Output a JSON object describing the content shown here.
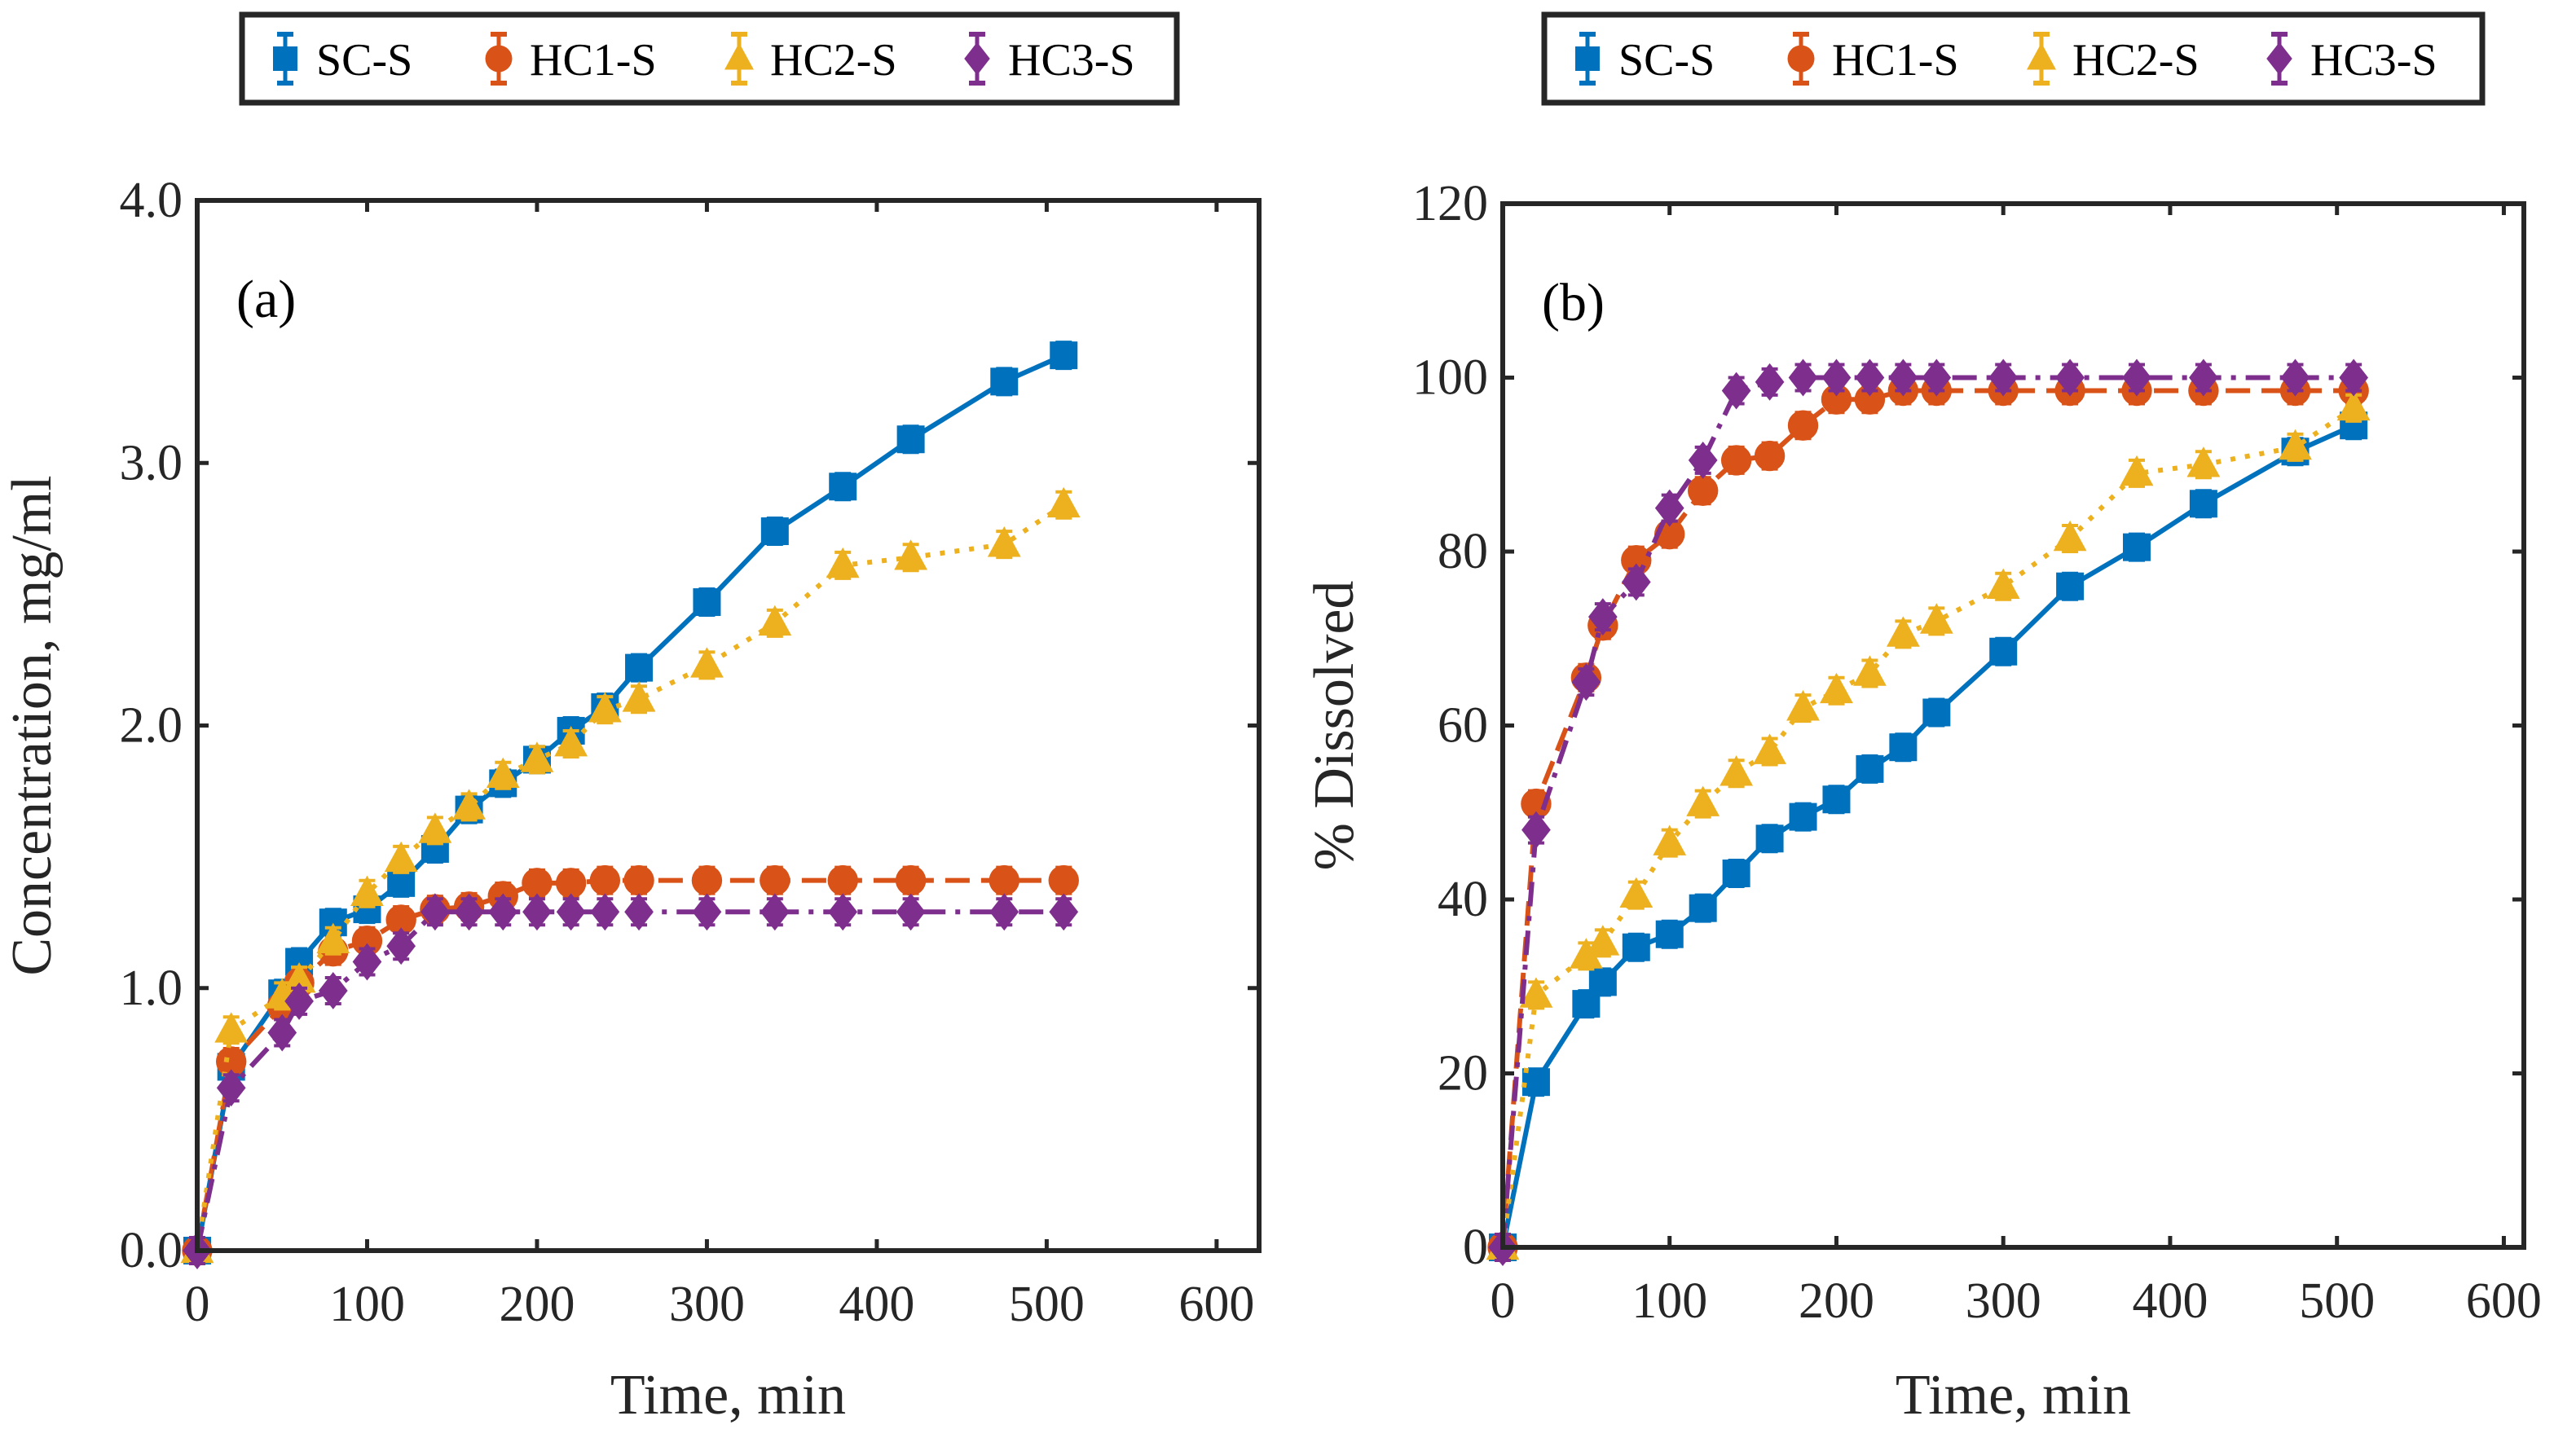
{
  "colors": {
    "SC-S": "#0072BD",
    "HC1-S": "#D95319",
    "HC2-S": "#EDB120",
    "HC3-S": "#7E2F8E",
    "axis": "#262626"
  },
  "chart_data": [
    {
      "type": "line",
      "panel_label": "(a)",
      "xlabel": "Time, min",
      "ylabel": "Concentration, mg/ml",
      "xlim": [
        0,
        625
      ],
      "ylim": [
        0,
        4.0
      ],
      "xticks": [
        "0",
        "100",
        "200",
        "300",
        "400",
        "500",
        "600"
      ],
      "xtick_values": [
        0,
        100,
        200,
        300,
        400,
        500,
        600
      ],
      "yticks": [
        "0.0",
        "1.0",
        "2.0",
        "3.0",
        "4.0"
      ],
      "ytick_values": [
        0,
        1,
        2,
        3,
        4
      ],
      "legend": {
        "placement": "top, outside",
        "entries": [
          "SC-S",
          "HC1-S",
          "HC2-S",
          "HC3-S"
        ]
      },
      "x": [
        0,
        20,
        50,
        60,
        80,
        100,
        120,
        140,
        160,
        180,
        200,
        220,
        240,
        260,
        300,
        340,
        380,
        420,
        475,
        510
      ],
      "series": [
        {
          "name": "SC-S",
          "marker": "square",
          "line": "solid",
          "values": [
            0,
            0.7,
            0.98,
            1.1,
            1.25,
            1.3,
            1.4,
            1.53,
            1.68,
            1.78,
            1.87,
            1.98,
            2.07,
            2.22,
            2.47,
            2.74,
            2.91,
            3.09,
            3.31,
            3.41
          ]
        },
        {
          "name": "HC1-S",
          "marker": "circle",
          "line": "dashed",
          "values": [
            0,
            0.72,
            0.93,
            1.02,
            1.14,
            1.18,
            1.26,
            1.3,
            1.31,
            1.35,
            1.4,
            1.4,
            1.41,
            1.41,
            1.41,
            1.41,
            1.41,
            1.41,
            1.41,
            1.41
          ]
        },
        {
          "name": "HC2-S",
          "marker": "triangle",
          "line": "dotted",
          "values": [
            0,
            0.84,
            0.97,
            1.03,
            1.18,
            1.36,
            1.49,
            1.6,
            1.69,
            1.81,
            1.87,
            1.93,
            2.06,
            2.1,
            2.23,
            2.39,
            2.61,
            2.64,
            2.69,
            2.84
          ]
        },
        {
          "name": "HC3-S",
          "marker": "diamond",
          "line": "dashdot",
          "values": [
            0,
            0.62,
            0.83,
            0.95,
            0.99,
            1.1,
            1.16,
            1.29,
            1.29,
            1.29,
            1.29,
            1.29,
            1.29,
            1.29,
            1.29,
            1.29,
            1.29,
            1.29,
            1.29,
            1.29
          ]
        }
      ]
    },
    {
      "type": "line",
      "panel_label": "(b)",
      "xlabel": "Time, min",
      "ylabel": "% Dissolved",
      "xlim": [
        0,
        612
      ],
      "ylim": [
        0,
        120
      ],
      "xticks": [
        "0",
        "100",
        "200",
        "300",
        "400",
        "500",
        "600"
      ],
      "xtick_values": [
        0,
        100,
        200,
        300,
        400,
        500,
        600
      ],
      "yticks": [
        "0",
        "20",
        "40",
        "60",
        "80",
        "100",
        "120"
      ],
      "ytick_values": [
        0,
        20,
        40,
        60,
        80,
        100,
        120
      ],
      "legend": {
        "placement": "top, outside",
        "entries": [
          "SC-S",
          "HC1-S",
          "HC2-S",
          "HC3-S"
        ]
      },
      "x": [
        0,
        20,
        50,
        60,
        80,
        100,
        120,
        140,
        160,
        180,
        200,
        220,
        240,
        260,
        300,
        340,
        380,
        420,
        475,
        510
      ],
      "series": [
        {
          "name": "SC-S",
          "marker": "square",
          "line": "solid",
          "values": [
            0,
            19,
            28,
            30.5,
            34.5,
            36,
            39,
            43,
            47,
            49.5,
            51.5,
            55,
            57.5,
            61.5,
            68.5,
            76,
            80.5,
            85.5,
            91.5,
            94.5
          ]
        },
        {
          "name": "HC1-S",
          "marker": "circle",
          "line": "dashed",
          "values": [
            0,
            51,
            65.5,
            71.5,
            79,
            82,
            87,
            90.5,
            91,
            94.5,
            97.5,
            97.5,
            98.5,
            98.5,
            98.5,
            98.5,
            98.5,
            98.5,
            98.5,
            98.5
          ]
        },
        {
          "name": "HC2-S",
          "marker": "triangle",
          "line": "dotted",
          "values": [
            0,
            29,
            33.5,
            35,
            40.5,
            46.5,
            51,
            54.5,
            57,
            62,
            64,
            66,
            70.5,
            72,
            76,
            81.5,
            89,
            90,
            92,
            96.5
          ]
        },
        {
          "name": "HC3-S",
          "marker": "diamond",
          "line": "dashdot",
          "values": [
            0,
            48,
            65,
            72.5,
            76.5,
            85,
            90.5,
            98.5,
            99.5,
            100,
            100,
            100,
            100,
            100,
            100,
            100,
            100,
            100,
            100,
            100
          ]
        }
      ]
    }
  ]
}
